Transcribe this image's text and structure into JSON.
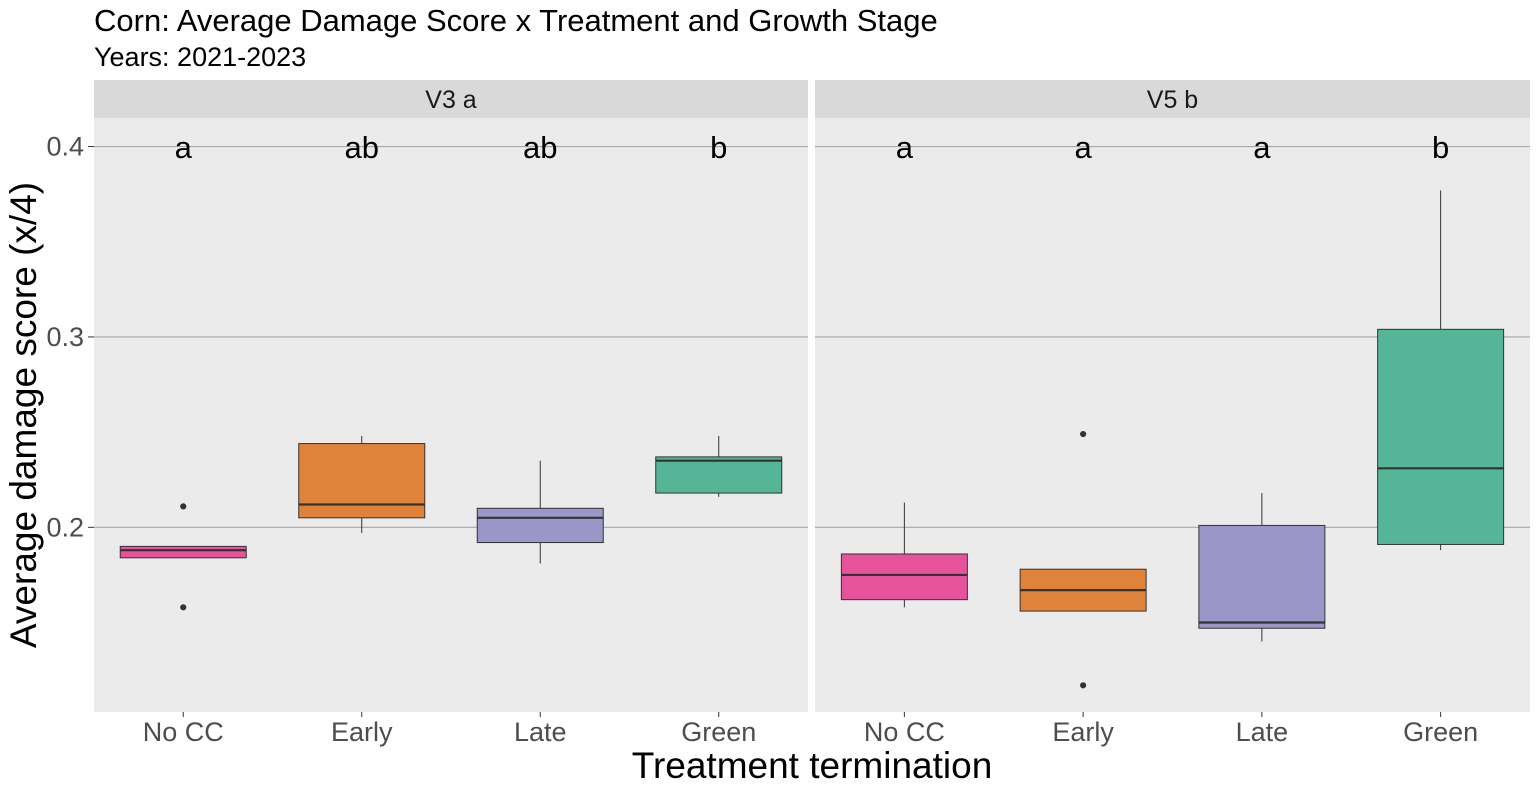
{
  "chart_data": {
    "type": "boxplot",
    "title": "Corn: Average Damage Score x Treatment and Growth Stage",
    "subtitle": "Years: 2021-2023",
    "xlabel": "Treatment termination",
    "ylabel": "Average damage score (x/4)",
    "ylim": [
      0.103,
      0.415
    ],
    "yticks": [
      0.2,
      0.3,
      0.4
    ],
    "ytick_labels": [
      "0.2",
      "0.3",
      "0.4"
    ],
    "categories": [
      "No CC",
      "Early",
      "Late",
      "Green"
    ],
    "colors": {
      "No CC": "#e7529d",
      "Early": "#e0833a",
      "Late": "#9a96c8",
      "Green": "#55b597"
    },
    "panel_background": "#ebebeb",
    "strip_background": "#d9d9d9",
    "grid": true,
    "legend": "none",
    "facets": [
      {
        "label": "V3  a",
        "boxes": [
          {
            "category": "No CC",
            "whisker_low": 0.184,
            "q1": 0.184,
            "median": 0.188,
            "q3": 0.19,
            "whisker_high": 0.19,
            "outliers": [
              0.211,
              0.158
            ],
            "letter": "a"
          },
          {
            "category": "Early",
            "whisker_low": 0.197,
            "q1": 0.205,
            "median": 0.212,
            "q3": 0.244,
            "whisker_high": 0.248,
            "outliers": [],
            "letter": "ab"
          },
          {
            "category": "Late",
            "whisker_low": 0.181,
            "q1": 0.192,
            "median": 0.205,
            "q3": 0.21,
            "whisker_high": 0.235,
            "outliers": [],
            "letter": "ab"
          },
          {
            "category": "Green",
            "whisker_low": 0.216,
            "q1": 0.218,
            "median": 0.235,
            "q3": 0.237,
            "whisker_high": 0.248,
            "outliers": [],
            "letter": "b"
          }
        ]
      },
      {
        "label": "V5  b",
        "boxes": [
          {
            "category": "No CC",
            "whisker_low": 0.158,
            "q1": 0.162,
            "median": 0.175,
            "q3": 0.186,
            "whisker_high": 0.213,
            "outliers": [],
            "letter": "a"
          },
          {
            "category": "Early",
            "whisker_low": 0.156,
            "q1": 0.156,
            "median": 0.167,
            "q3": 0.178,
            "whisker_high": 0.178,
            "outliers": [
              0.249,
              0.117
            ],
            "letter": "a"
          },
          {
            "category": "Late",
            "whisker_low": 0.14,
            "q1": 0.147,
            "median": 0.15,
            "q3": 0.201,
            "whisker_high": 0.218,
            "outliers": [],
            "letter": "a"
          },
          {
            "category": "Green",
            "whisker_low": 0.188,
            "q1": 0.191,
            "median": 0.231,
            "q3": 0.304,
            "whisker_high": 0.377,
            "outliers": [],
            "letter": "b"
          }
        ]
      }
    ]
  }
}
